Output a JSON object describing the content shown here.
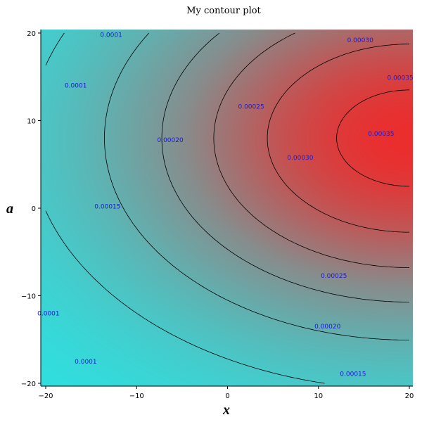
{
  "chart_data": {
    "type": "heatmap",
    "title": "My contour plot",
    "xlabel": "x",
    "ylabel": "a",
    "xlim": [
      -20,
      20
    ],
    "ylim": [
      -20,
      20
    ],
    "xticks": [
      -20,
      -10,
      0,
      10,
      20
    ],
    "yticks": [
      -20,
      -10,
      0,
      10,
      20
    ],
    "colormap": {
      "low": "#2fe0e0",
      "mid": "#8a8a8a",
      "high": "#ff1a1a"
    },
    "value_range": [
      5e-05,
      0.0004
    ],
    "grid": false,
    "legend": "none",
    "contour_levels": [
      {
        "level": "0.0001",
        "labels": [
          {
            "x": -12.8,
            "y": 19.8
          },
          {
            "x": -16.7,
            "y": 14.0
          },
          {
            "x": -19.7,
            "y": -12.0
          },
          {
            "x": -15.6,
            "y": -17.5
          }
        ]
      },
      {
        "level": "0.00015",
        "labels": [
          {
            "x": -13.2,
            "y": 0.2
          },
          {
            "x": 13.8,
            "y": -18.9
          }
        ]
      },
      {
        "level": "0.00020",
        "labels": [
          {
            "x": -6.3,
            "y": 7.8
          },
          {
            "x": 11.0,
            "y": -13.5
          }
        ]
      },
      {
        "level": "0.00025",
        "labels": [
          {
            "x": 2.6,
            "y": 11.6
          },
          {
            "x": 11.7,
            "y": -7.7
          }
        ]
      },
      {
        "level": "0.00030",
        "labels": [
          {
            "x": 14.6,
            "y": 19.2
          },
          {
            "x": 8.0,
            "y": 5.8
          }
        ]
      },
      {
        "level": "0.00035",
        "labels": [
          {
            "x": 19.0,
            "y": 14.9
          },
          {
            "x": 16.9,
            "y": 8.5
          }
        ]
      }
    ]
  }
}
